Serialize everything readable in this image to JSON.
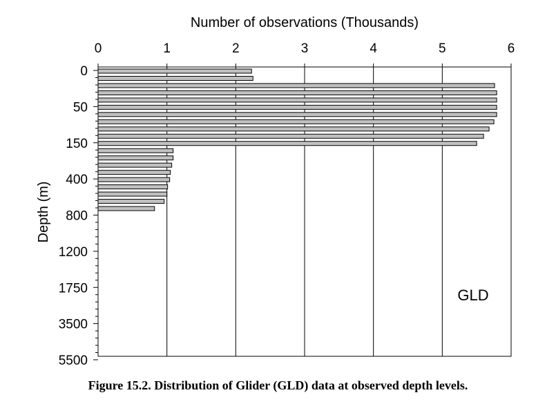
{
  "caption": "Figure 15.2. Distribution of Glider (GLD) data at observed depth levels.",
  "chart_data": {
    "type": "bar",
    "orientation": "horizontal",
    "xlabel": "Number of observations (Thousands)",
    "ylabel": "Depth (m)",
    "xlim": [
      0,
      6
    ],
    "x_ticks": [
      "0",
      "1",
      "2",
      "3",
      "4",
      "5",
      "6"
    ],
    "y_tick_labels": [
      "0",
      "50",
      "150",
      "400",
      "800",
      "1200",
      "1750",
      "3500",
      "5500"
    ],
    "annotation": "GLD",
    "bar_color": "#c0c0c0",
    "gridlines": "vertical",
    "values": [
      2.23,
      2.25,
      5.76,
      5.79,
      5.79,
      5.79,
      5.79,
      5.75,
      5.68,
      5.6,
      5.5,
      1.09,
      1.09,
      1.07,
      1.05,
      1.04,
      1.01,
      1.0,
      0.96,
      0.82
    ]
  }
}
